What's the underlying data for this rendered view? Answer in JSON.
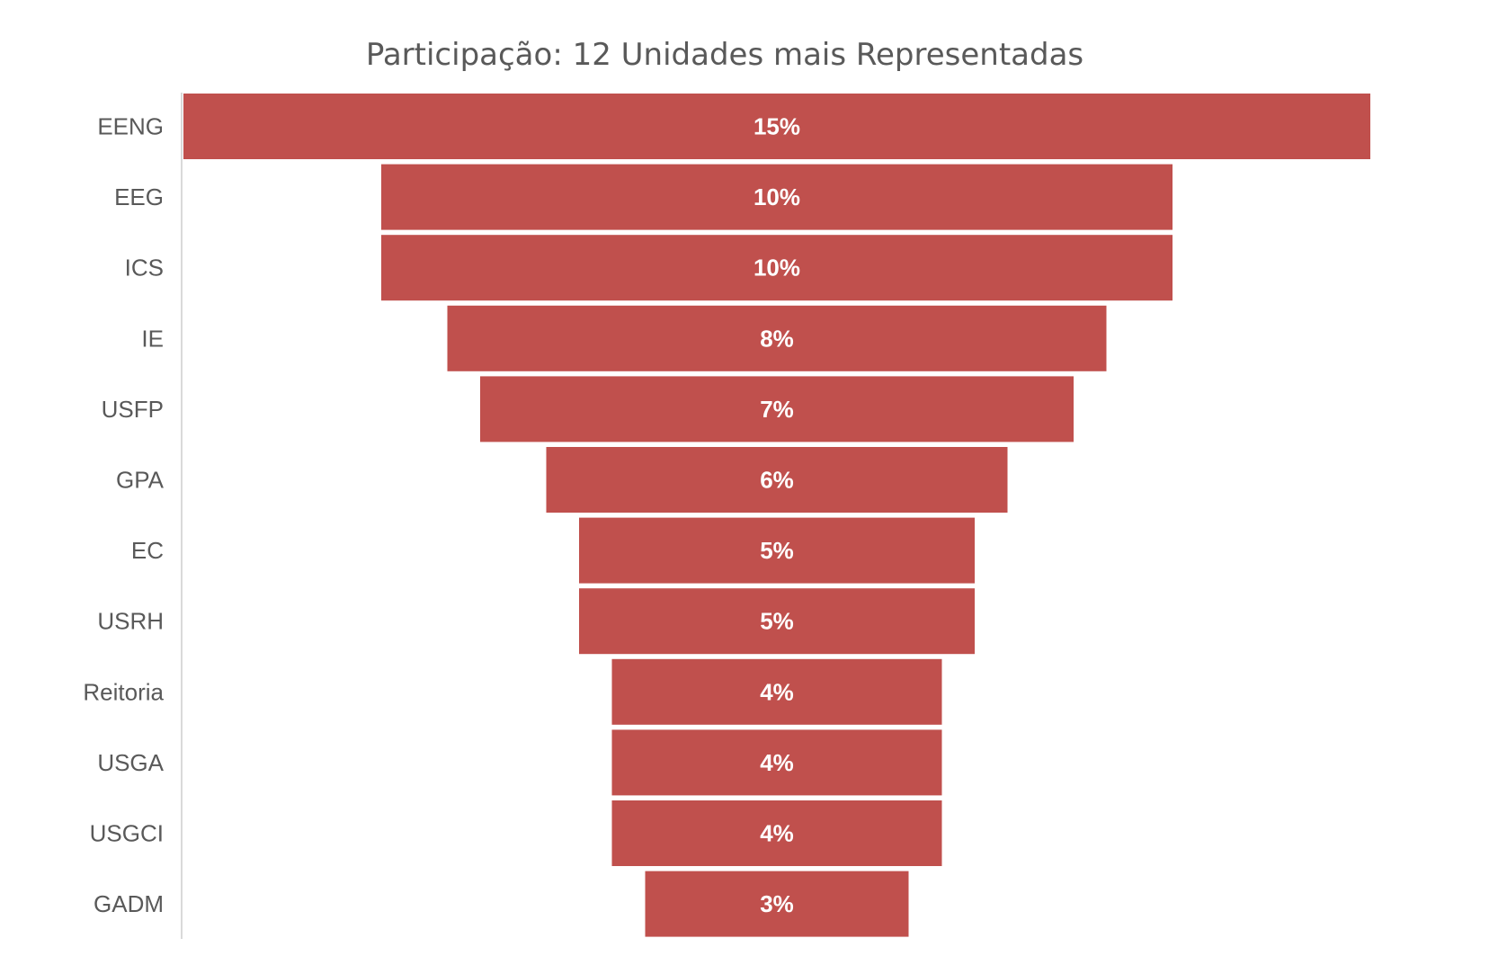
{
  "chart_data": {
    "type": "bar",
    "orientation": "horizontal-funnel",
    "title": "Participação: 12 Unidades mais Representadas",
    "categories": [
      "EENG",
      "EEG",
      "ICS",
      "IE",
      "USFP",
      "GPA",
      "EC",
      "USRH",
      "Reitoria",
      "USGA",
      "USGCI",
      "GADM"
    ],
    "values": [
      0.15,
      0.1,
      0.1,
      0.08,
      0.07,
      0.06,
      0.05,
      0.05,
      0.04,
      0.04,
      0.04,
      0.03
    ],
    "value_labels": [
      "15%",
      "10%",
      "10%",
      "8%",
      "7%",
      "6%",
      "5%",
      "5%",
      "4%",
      "4%",
      "4%",
      "3%"
    ],
    "bar_width_fraction": [
      0.15,
      0.1,
      0.1,
      0.0833,
      0.075,
      0.0583,
      0.05,
      0.05,
      0.0417,
      0.0417,
      0.0417,
      0.0333
    ],
    "xlim": [
      0,
      0.15
    ],
    "legend": "none",
    "grid": false,
    "colors": {
      "bar": "#C0504D",
      "axis": "#d9d9d9",
      "title": "#595959",
      "category_label": "#595959",
      "value_label": "#ffffff"
    }
  }
}
